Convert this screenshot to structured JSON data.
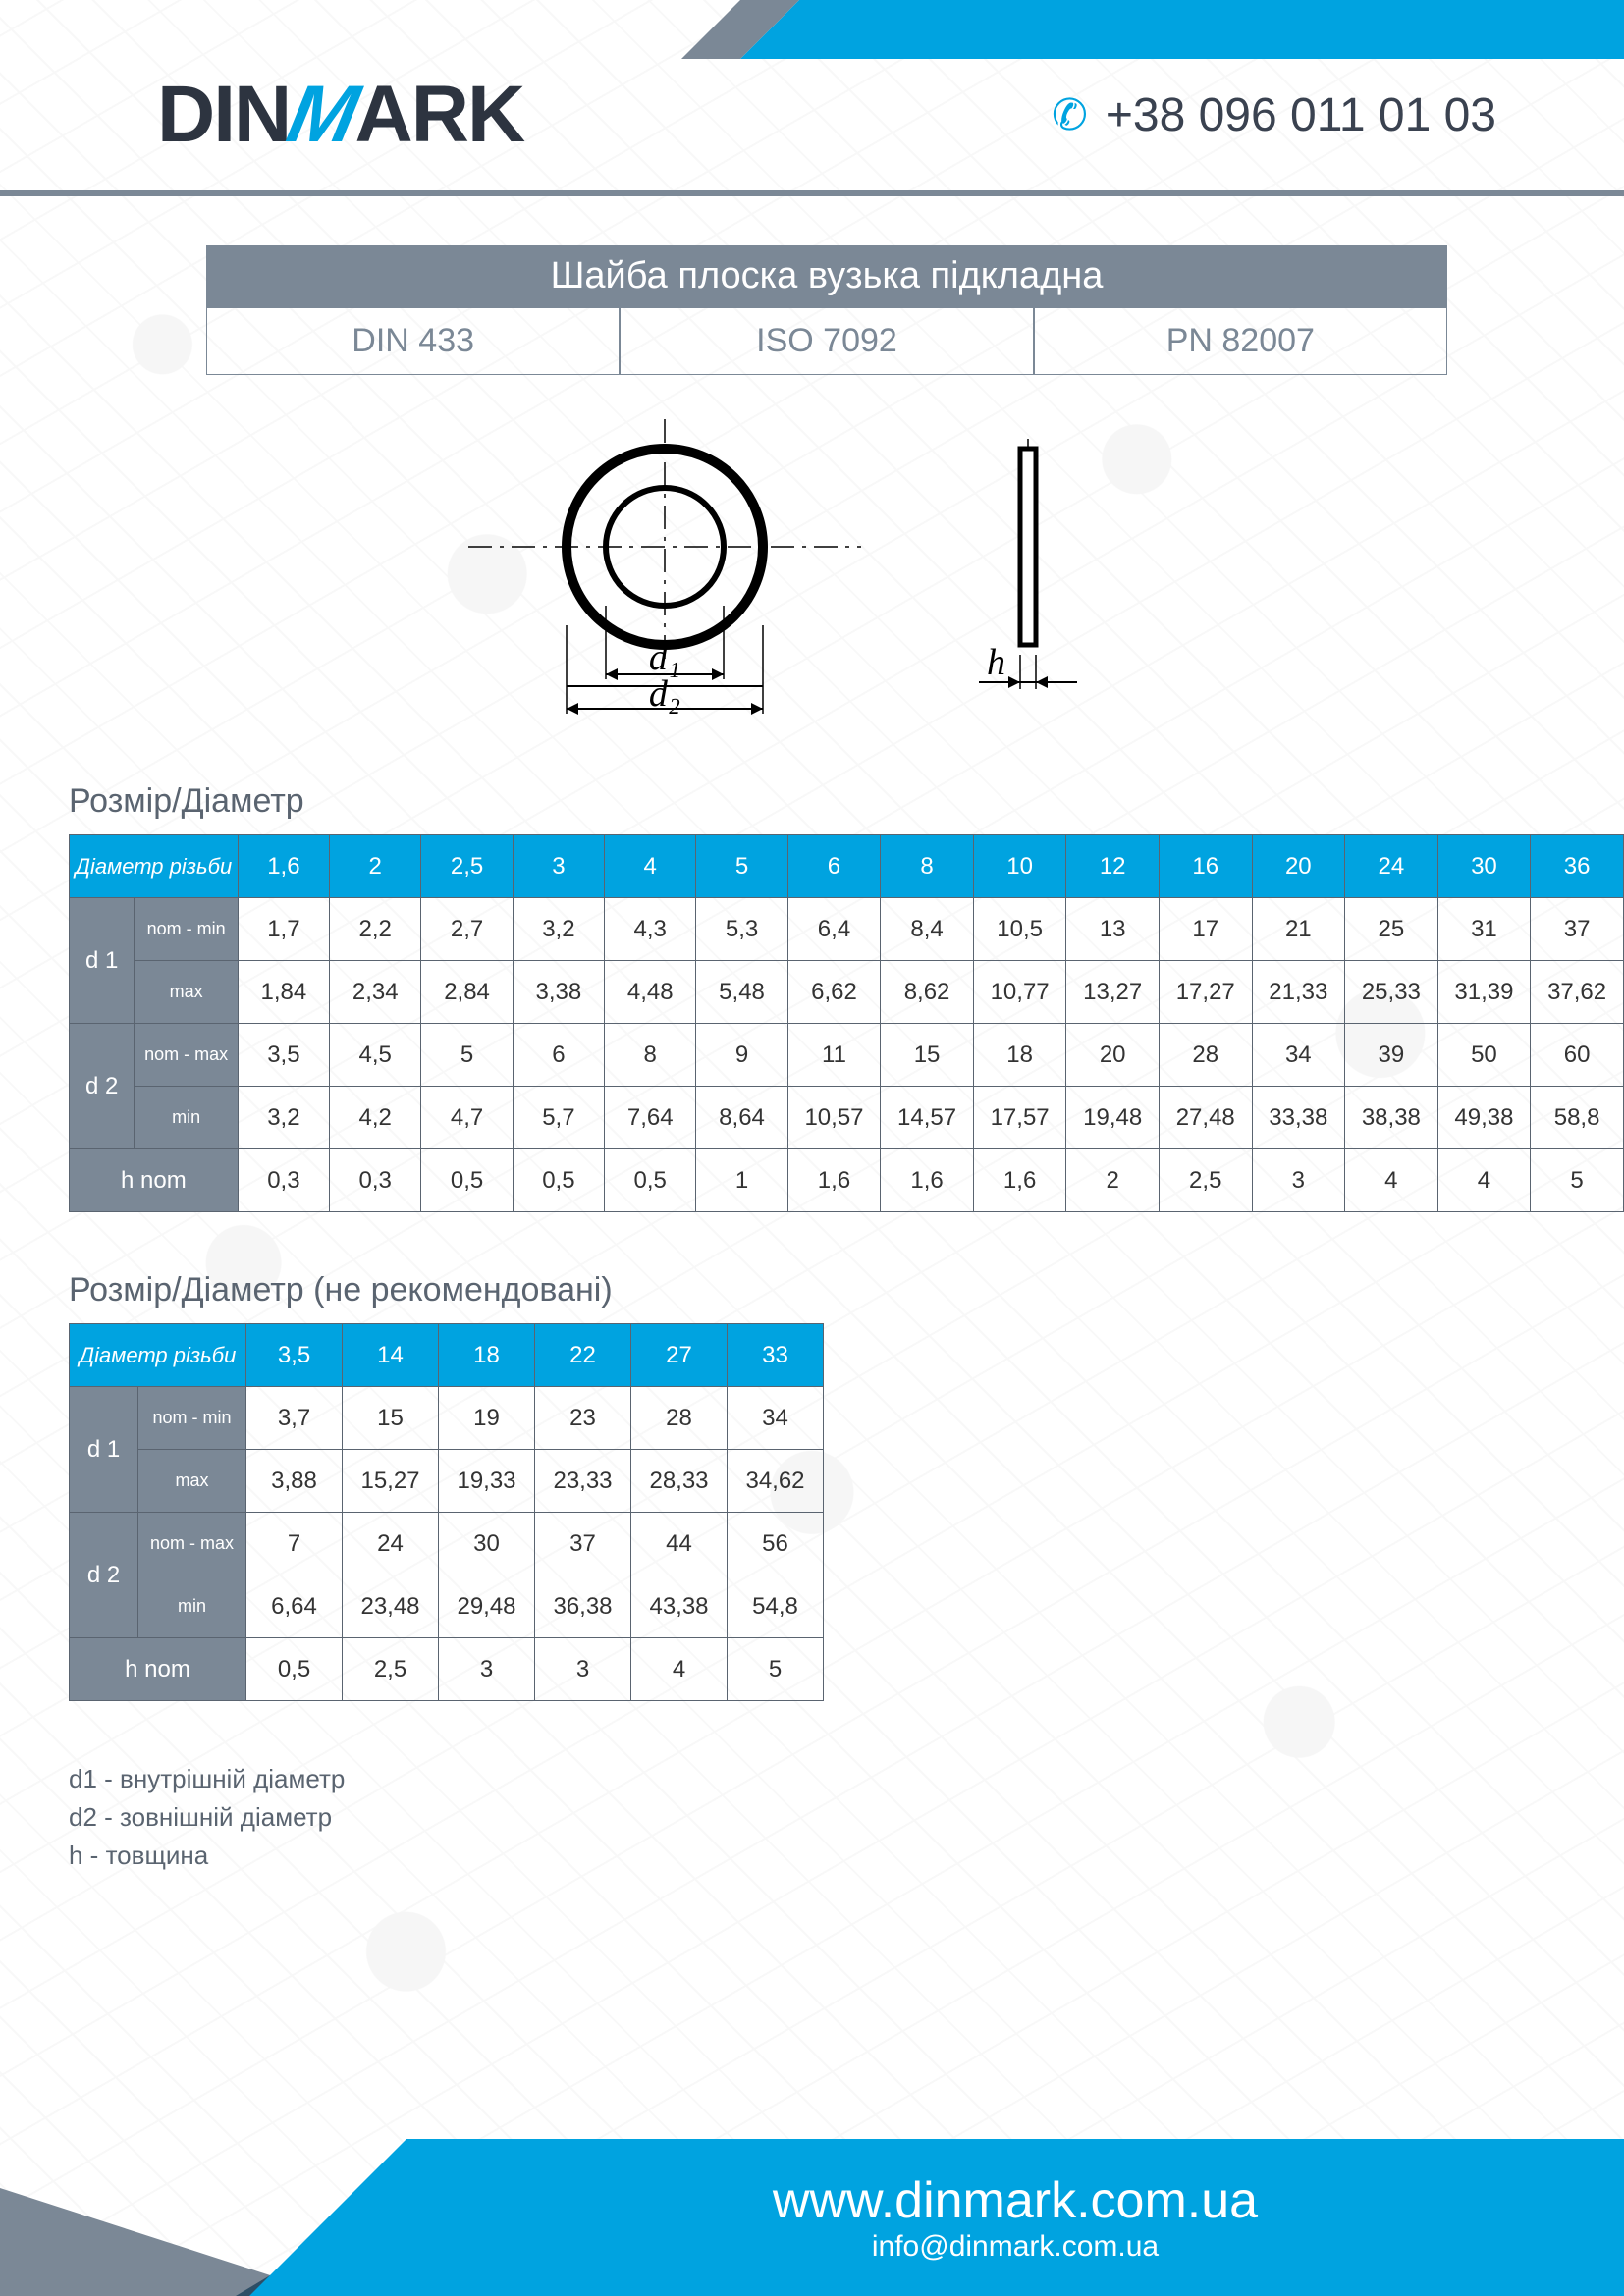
{
  "brand": {
    "pre": "DIN",
    "mid": "M",
    "post": "ARK"
  },
  "phone": "+38 096 011 01 03",
  "title": "Шайба плоска вузька підкладна",
  "standards": [
    "DIN 433",
    "ISO 7092",
    "PN 82007"
  ],
  "diagram": {
    "d1": "d₁",
    "d2": "d₂",
    "h": "h"
  },
  "table1": {
    "heading": "Розмір/Діаметр",
    "thread_label": "Діаметр різьби",
    "thread": [
      "1,6",
      "2",
      "2,5",
      "3",
      "4",
      "5",
      "6",
      "8",
      "10",
      "12",
      "16",
      "20",
      "24",
      "30",
      "36"
    ],
    "rows": [
      {
        "group": "d 1",
        "sub": "nom - min",
        "vals": [
          "1,7",
          "2,2",
          "2,7",
          "3,2",
          "4,3",
          "5,3",
          "6,4",
          "8,4",
          "10,5",
          "13",
          "17",
          "21",
          "25",
          "31",
          "37"
        ]
      },
      {
        "group": "",
        "sub": "max",
        "vals": [
          "1,84",
          "2,34",
          "2,84",
          "3,38",
          "4,48",
          "5,48",
          "6,62",
          "8,62",
          "10,77",
          "13,27",
          "17,27",
          "21,33",
          "25,33",
          "31,39",
          "37,62"
        ]
      },
      {
        "group": "d 2",
        "sub": "nom - max",
        "vals": [
          "3,5",
          "4,5",
          "5",
          "6",
          "8",
          "9",
          "11",
          "15",
          "18",
          "20",
          "28",
          "34",
          "39",
          "50",
          "60"
        ]
      },
      {
        "group": "",
        "sub": "min",
        "vals": [
          "3,2",
          "4,2",
          "4,7",
          "5,7",
          "7,64",
          "8,64",
          "10,57",
          "14,57",
          "17,57",
          "19,48",
          "27,48",
          "33,38",
          "38,38",
          "49,38",
          "58,8"
        ]
      },
      {
        "group": "h nom",
        "sub": "",
        "vals": [
          "0,3",
          "0,3",
          "0,5",
          "0,5",
          "0,5",
          "1",
          "1,6",
          "1,6",
          "1,6",
          "2",
          "2,5",
          "3",
          "4",
          "4",
          "5"
        ]
      }
    ]
  },
  "table2": {
    "heading": "Розмір/Діаметр (не рекомендовані)",
    "thread_label": "Діаметр різьби",
    "thread": [
      "3,5",
      "14",
      "18",
      "22",
      "27",
      "33"
    ],
    "rows": [
      {
        "group": "d 1",
        "sub": "nom - min",
        "vals": [
          "3,7",
          "15",
          "19",
          "23",
          "28",
          "34"
        ]
      },
      {
        "group": "",
        "sub": "max",
        "vals": [
          "3,88",
          "15,27",
          "19,33",
          "23,33",
          "28,33",
          "34,62"
        ]
      },
      {
        "group": "d 2",
        "sub": "nom - max",
        "vals": [
          "7",
          "24",
          "30",
          "37",
          "44",
          "56"
        ]
      },
      {
        "group": "",
        "sub": "min",
        "vals": [
          "6,64",
          "23,48",
          "29,48",
          "36,38",
          "43,38",
          "54,8"
        ]
      },
      {
        "group": "h nom",
        "sub": "",
        "vals": [
          "0,5",
          "2,5",
          "3",
          "3",
          "4",
          "5"
        ]
      }
    ]
  },
  "legend": [
    "d1 - внутрішній діаметр",
    "d2 - зовнішній діаметр",
    "h - товщина"
  ],
  "footer": {
    "site": "www.dinmark.com.ua",
    "mail": "info@dinmark.com.ua"
  },
  "colors": {
    "blue": "#00a3e0",
    "grey": "#7b8896",
    "dark": "#2d3440"
  }
}
